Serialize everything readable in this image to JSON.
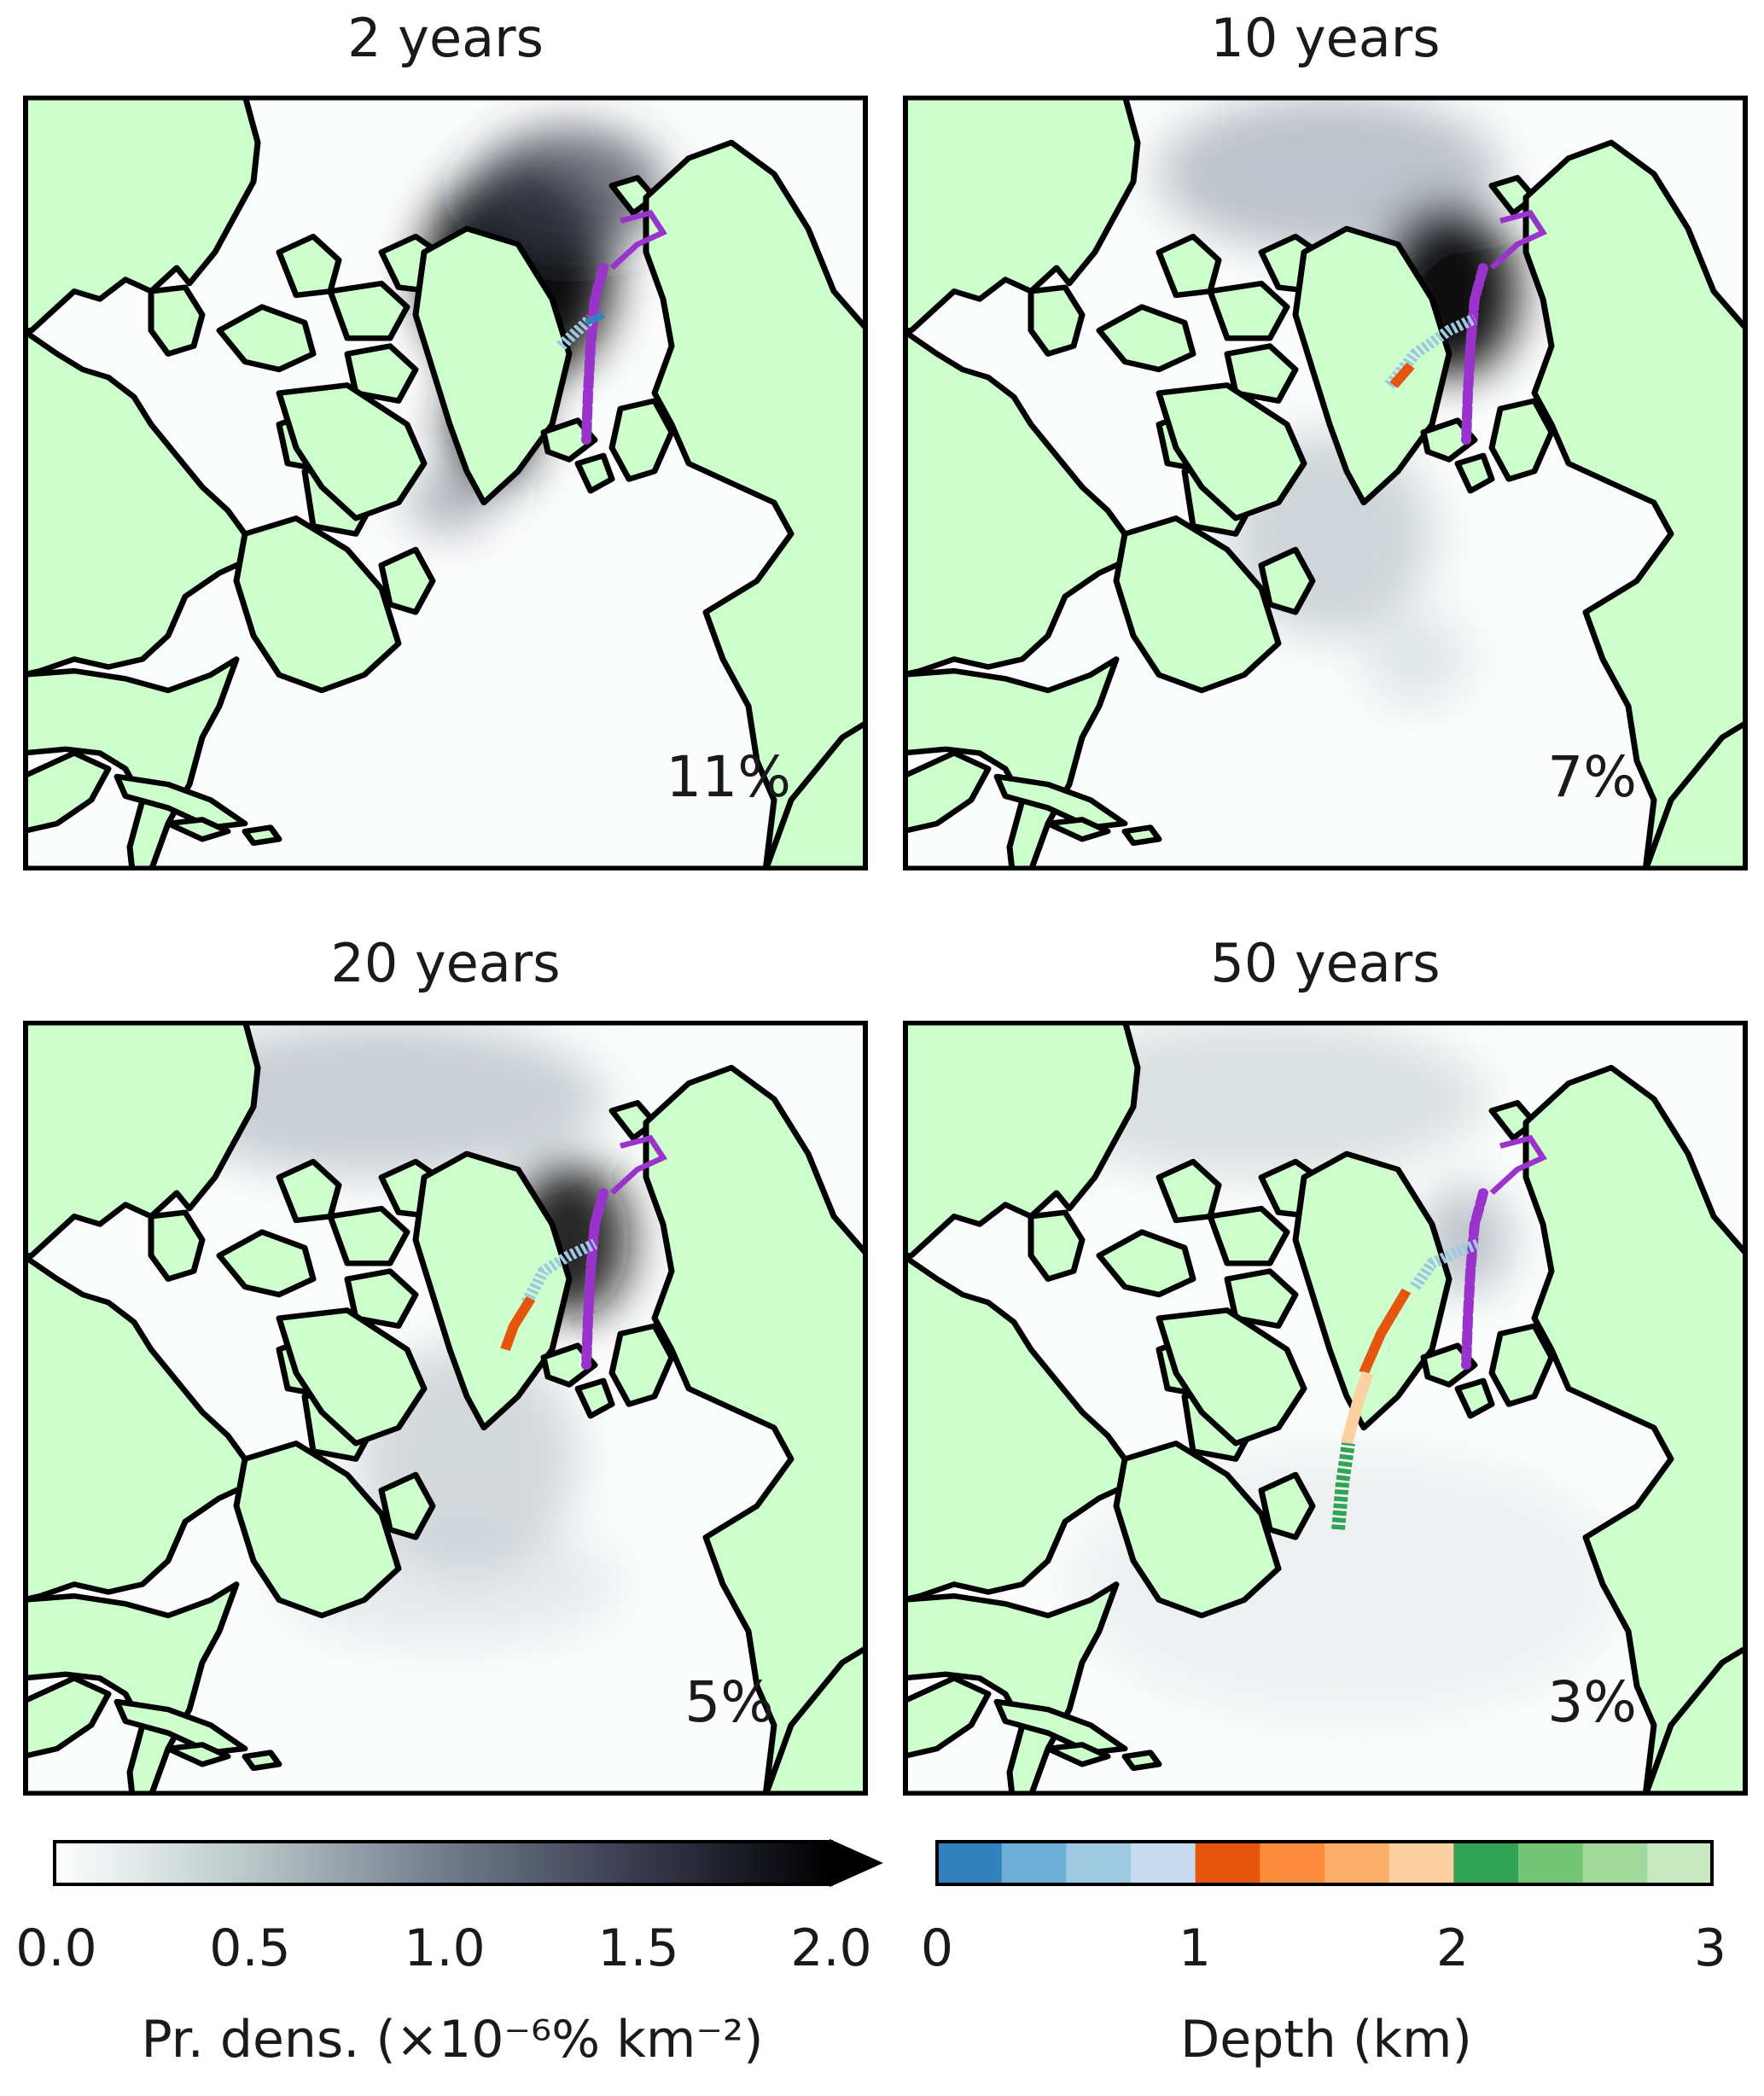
{
  "panels": [
    {
      "title": "2 years",
      "percent": "11%"
    },
    {
      "title": "10 years",
      "percent": "7%"
    },
    {
      "title": "20 years",
      "percent": "5%"
    },
    {
      "title": "50 years",
      "percent": "3%"
    }
  ],
  "colorbars": {
    "density": {
      "label": "Pr. dens. (×10⁻⁶% km⁻²)",
      "ticks": [
        "0.0",
        "0.5",
        "1.0",
        "1.5",
        "2.0"
      ],
      "range": [
        0,
        2.0
      ],
      "extend": "max",
      "colormap": "bone_r"
    },
    "depth": {
      "label": "Depth (km)",
      "ticks": [
        "0",
        "1",
        "2",
        "3"
      ],
      "range": [
        0,
        3
      ],
      "colors": [
        "#3182bd",
        "#6baed6",
        "#9ecae1",
        "#c6dbef",
        "#e6550d",
        "#fd8d3c",
        "#fdae6b",
        "#fdd0a2",
        "#31a354",
        "#74c476",
        "#a1d99b",
        "#c7e9c0"
      ]
    }
  },
  "colors": {
    "land": "#ccffcc",
    "coast": "#000000",
    "trajectory": "#9933cc"
  }
}
